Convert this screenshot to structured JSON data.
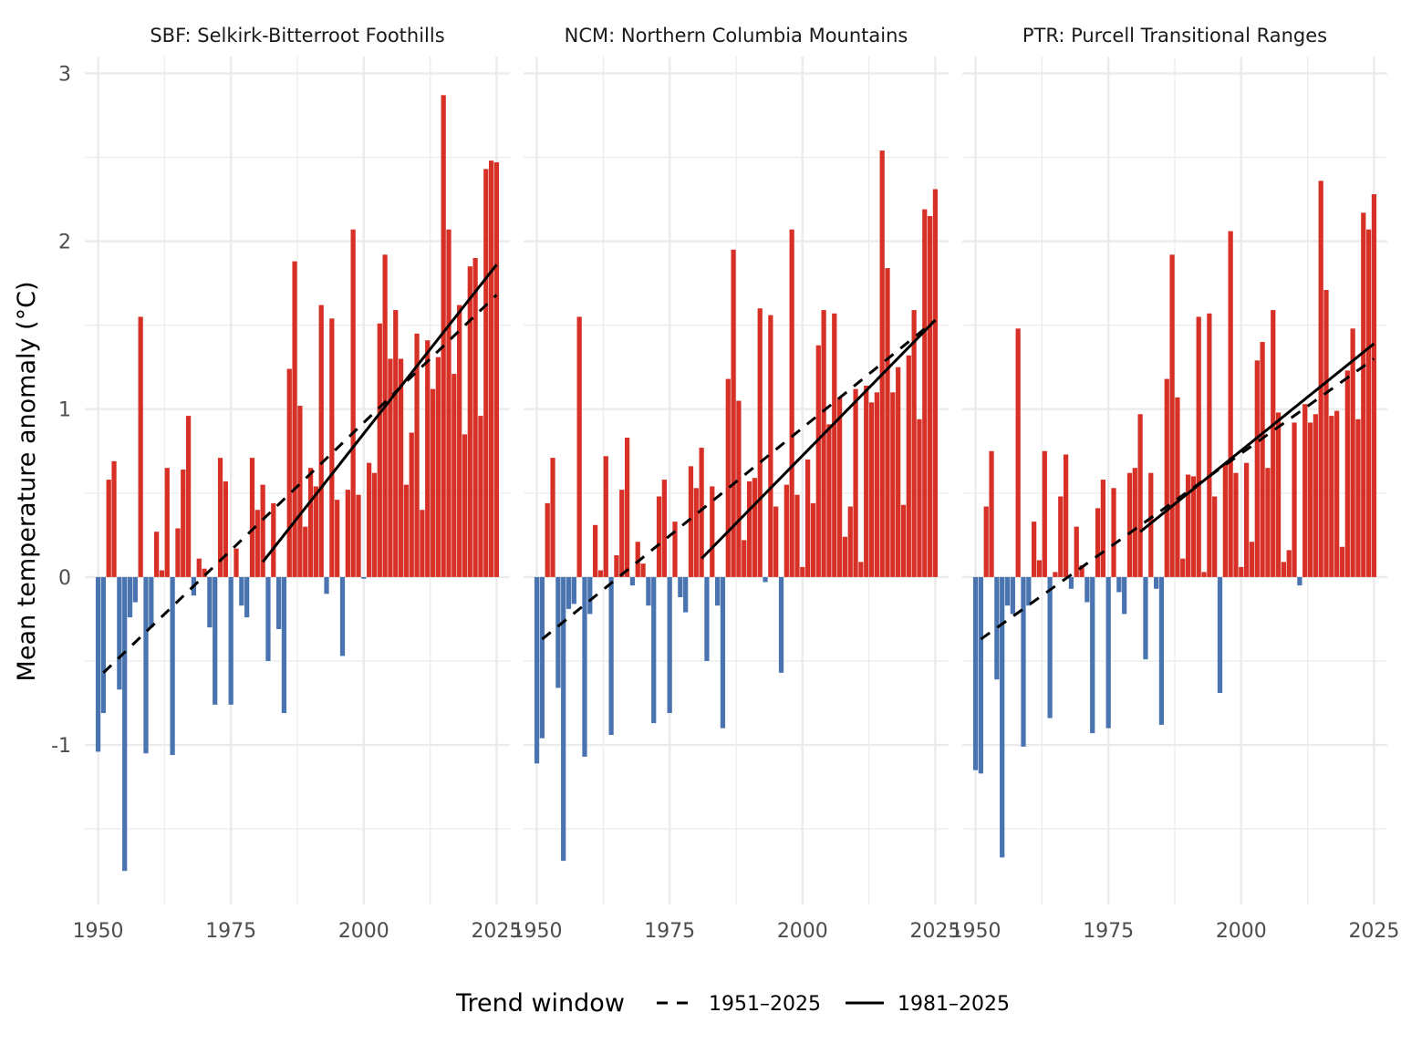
{
  "chart_data": {
    "type": "bar",
    "ylabel": "Mean temperature anomaly (°C)",
    "xlabel": "",
    "x_ticks": [
      1950,
      1975,
      2000,
      2025
    ],
    "x_tick_labels": [
      "1950",
      "1975",
      "2000",
      "2025"
    ],
    "y_ticks": [
      -1,
      0,
      1,
      2,
      3
    ],
    "y_tick_labels": [
      "-1",
      "0",
      "1",
      "2",
      "3"
    ],
    "xlim": [
      1947.5,
      2027.5
    ],
    "ylim": [
      -1.95,
      3.1
    ],
    "grid": true,
    "colors": {
      "positive": "#d73027",
      "negative": "#4a74b0",
      "trend": "#000000",
      "grid": "#ebebeb"
    },
    "legend": {
      "title": "Trend window",
      "position": "bottom",
      "entries": [
        {
          "label": "1951–2025",
          "linestyle": "dashed"
        },
        {
          "label": "1981–2025",
          "linestyle": "solid"
        }
      ]
    },
    "years": [
      1950,
      1951,
      1952,
      1953,
      1954,
      1955,
      1956,
      1957,
      1958,
      1959,
      1960,
      1961,
      1962,
      1963,
      1964,
      1965,
      1966,
      1967,
      1968,
      1969,
      1970,
      1971,
      1972,
      1973,
      1974,
      1975,
      1976,
      1977,
      1978,
      1979,
      1980,
      1981,
      1982,
      1983,
      1984,
      1985,
      1986,
      1987,
      1988,
      1989,
      1990,
      1991,
      1992,
      1993,
      1994,
      1995,
      1996,
      1997,
      1998,
      1999,
      2000,
      2001,
      2002,
      2003,
      2004,
      2005,
      2006,
      2007,
      2008,
      2009,
      2010,
      2011,
      2012,
      2013,
      2014,
      2015,
      2016,
      2017,
      2018,
      2019,
      2020,
      2021,
      2022,
      2023,
      2024,
      2025
    ],
    "panels": [
      {
        "title": "SBF: Selkirk-Bitterroot Foothills",
        "values": [
          -1.04,
          -0.81,
          0.58,
          0.69,
          -0.67,
          -1.75,
          -0.24,
          -0.15,
          1.55,
          -1.05,
          -0.3,
          0.27,
          0.04,
          0.65,
          -1.06,
          0.29,
          0.64,
          0.96,
          -0.11,
          0.11,
          0.05,
          -0.3,
          -0.76,
          0.71,
          0.57,
          -0.76,
          0.17,
          -0.17,
          -0.24,
          0.71,
          0.4,
          0.55,
          -0.5,
          0.44,
          -0.31,
          -0.81,
          1.24,
          1.88,
          1.02,
          0.3,
          0.65,
          0.54,
          1.62,
          -0.1,
          1.54,
          0.46,
          -0.47,
          0.52,
          2.07,
          0.49,
          -0.01,
          0.68,
          0.62,
          1.51,
          1.92,
          1.3,
          1.59,
          1.3,
          0.55,
          0.86,
          1.45,
          0.4,
          1.41,
          1.12,
          1.31,
          2.87,
          2.07,
          1.21,
          1.62,
          0.85,
          1.85,
          1.9,
          0.96,
          2.43,
          2.48,
          2.47
        ],
        "trends": [
          {
            "window": "1951–2025",
            "linestyle": "dashed",
            "x": [
              1951,
              2025
            ],
            "y": [
              -0.57,
              1.68
            ]
          },
          {
            "window": "1981–2025",
            "linestyle": "solid",
            "x": [
              1981,
              2025
            ],
            "y": [
              0.09,
              1.86
            ]
          }
        ]
      },
      {
        "title": "NCM: Northern Columbia Mountains",
        "values": [
          -1.11,
          -0.96,
          0.44,
          0.71,
          -0.66,
          -1.69,
          -0.19,
          -0.16,
          1.55,
          -1.07,
          -0.22,
          0.31,
          0.04,
          0.72,
          -0.94,
          0.13,
          0.52,
          0.83,
          -0.05,
          0.21,
          0.08,
          -0.17,
          -0.87,
          0.48,
          0.58,
          -0.81,
          0.33,
          -0.12,
          -0.21,
          0.66,
          0.53,
          0.77,
          -0.5,
          0.54,
          -0.17,
          -0.9,
          1.18,
          1.95,
          1.05,
          0.22,
          0.57,
          0.59,
          1.6,
          -0.03,
          1.56,
          0.42,
          -0.57,
          0.55,
          2.07,
          0.49,
          0.06,
          0.7,
          0.44,
          1.38,
          1.59,
          0.91,
          1.57,
          1.07,
          0.24,
          0.42,
          1.12,
          0.09,
          1.14,
          1.04,
          1.1,
          2.54,
          1.84,
          1.1,
          1.25,
          0.43,
          1.32,
          1.59,
          0.94,
          2.19,
          2.15,
          2.31
        ],
        "trends": [
          {
            "window": "1951–2025",
            "linestyle": "dashed",
            "x": [
              1951,
              2025
            ],
            "y": [
              -0.37,
              1.53
            ]
          },
          {
            "window": "1981–2025",
            "linestyle": "solid",
            "x": [
              1981,
              2025
            ],
            "y": [
              0.11,
              1.53
            ]
          }
        ]
      },
      {
        "title": "PTR: Purcell Transitional Ranges",
        "values": [
          -1.15,
          -1.17,
          0.42,
          0.75,
          -0.61,
          -1.67,
          -0.17,
          -0.22,
          1.48,
          -1.01,
          -0.17,
          0.33,
          0.1,
          0.75,
          -0.84,
          0.03,
          0.48,
          0.73,
          -0.07,
          0.3,
          0.07,
          -0.15,
          -0.93,
          0.41,
          0.58,
          -0.9,
          0.53,
          -0.09,
          -0.22,
          0.62,
          0.65,
          0.97,
          -0.49,
          0.62,
          -0.07,
          -0.88,
          1.18,
          1.92,
          1.07,
          0.11,
          0.61,
          0.6,
          1.55,
          0.03,
          1.57,
          0.48,
          -0.69,
          0.67,
          2.06,
          0.62,
          0.06,
          0.68,
          0.21,
          1.29,
          1.4,
          0.65,
          1.59,
          0.98,
          0.09,
          0.16,
          0.92,
          -0.05,
          1.03,
          0.92,
          0.97,
          2.36,
          1.71,
          0.96,
          0.99,
          0.18,
          1.23,
          1.48,
          0.94,
          2.17,
          2.07,
          2.28
        ],
        "trends": [
          {
            "window": "1951–2025",
            "linestyle": "dashed",
            "x": [
              1951,
              2025
            ],
            "y": [
              -0.37,
              1.3
            ]
          },
          {
            "window": "1981–2025",
            "linestyle": "solid",
            "x": [
              1981,
              2025
            ],
            "y": [
              0.27,
              1.39
            ]
          }
        ]
      }
    ]
  }
}
